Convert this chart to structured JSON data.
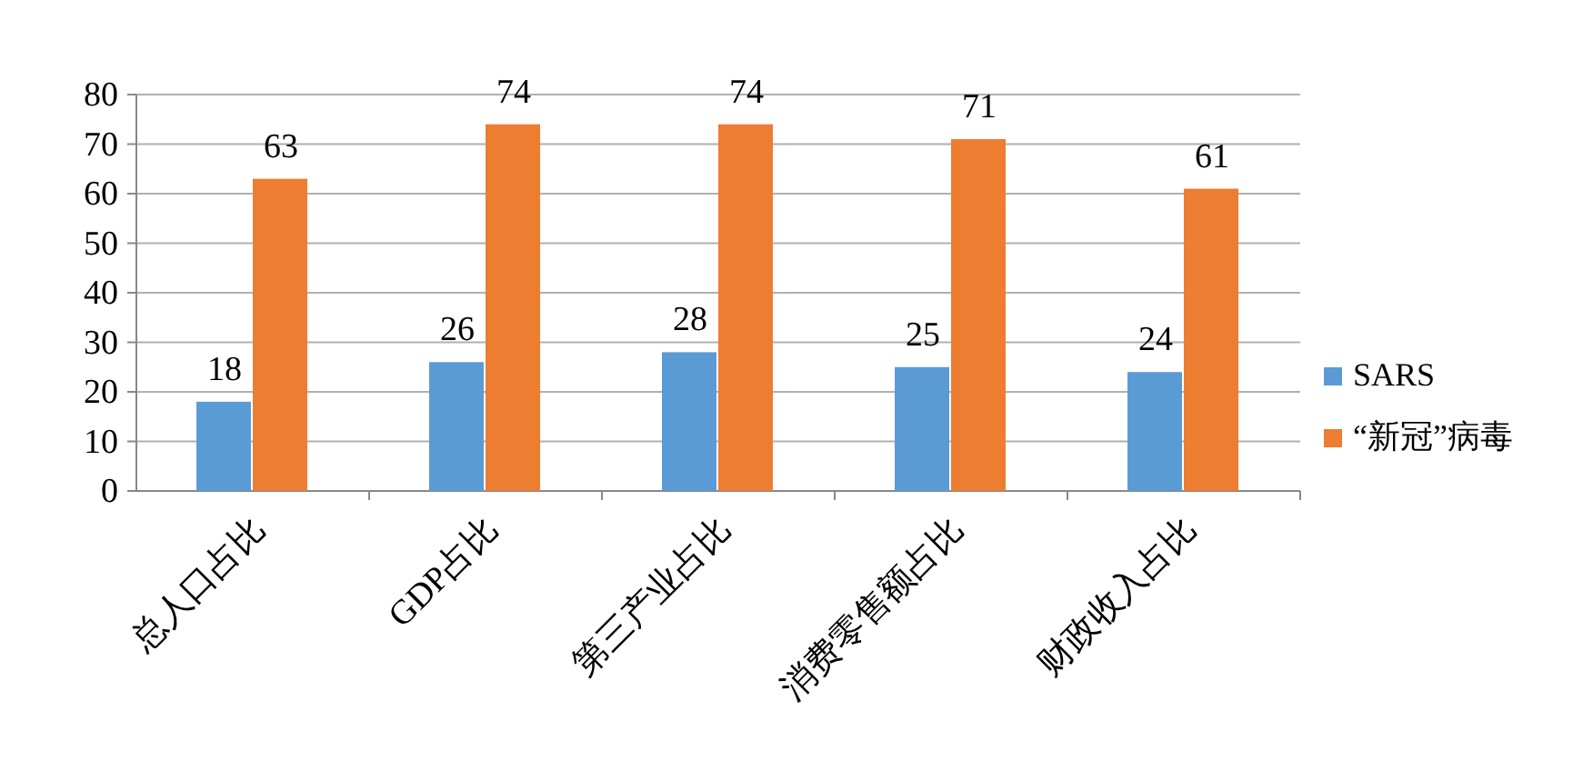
{
  "chart_data": {
    "type": "bar",
    "categories": [
      "总人口占比",
      "GDP占比",
      "第三产业占比",
      "消费零售额占比",
      "财政收入占比"
    ],
    "series": [
      {
        "name": "SARS",
        "color": "#5b9bd5",
        "values": [
          18,
          26,
          28,
          25,
          24
        ]
      },
      {
        "name": "“新冠”病毒",
        "color": "#ed7d31",
        "values": [
          63,
          74,
          74,
          71,
          61
        ]
      }
    ],
    "ylim": [
      0,
      80
    ],
    "yticks": [
      0,
      10,
      20,
      30,
      40,
      50,
      60,
      70,
      80
    ],
    "grid": "y",
    "legend": "right",
    "data_labels": true
  }
}
